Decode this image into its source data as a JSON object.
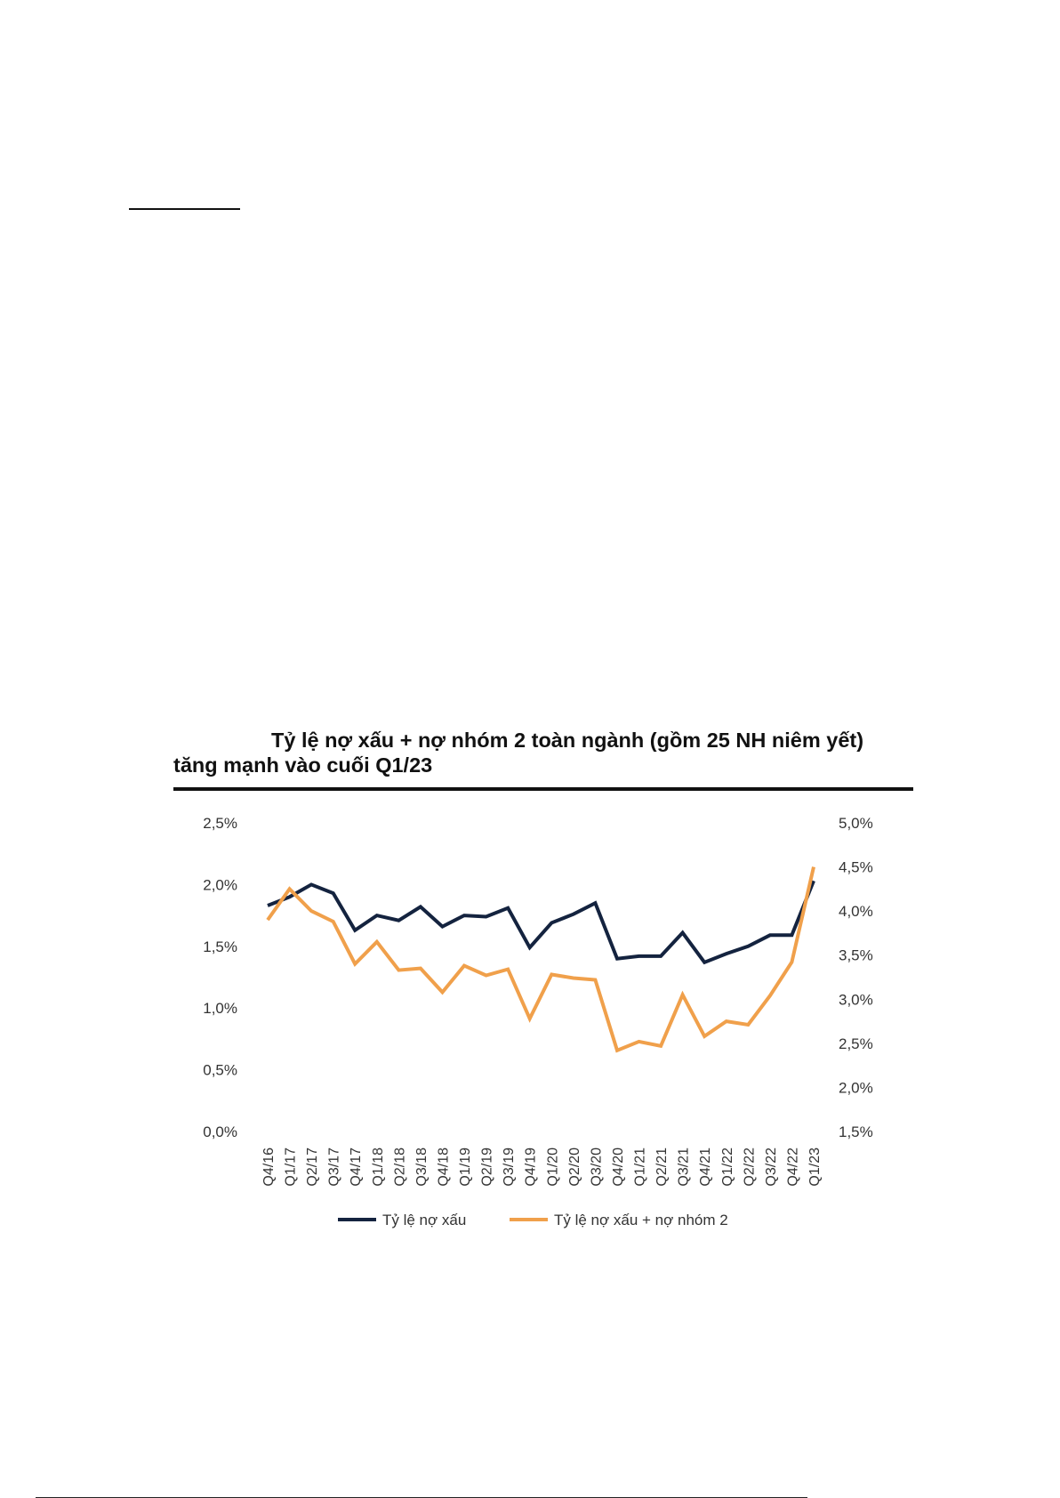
{
  "chart_data": {
    "type": "line",
    "title_line1": "Tỷ lệ nợ xấu + nợ nhóm 2 toàn ngành (gồm 25 NH niêm yết)",
    "title_line2": "tăng mạnh vào cuối Q1/23",
    "categories": [
      "Q4/16",
      "Q1/17",
      "Q2/17",
      "Q3/17",
      "Q4/17",
      "Q1/18",
      "Q2/18",
      "Q3/18",
      "Q4/18",
      "Q1/19",
      "Q2/19",
      "Q3/19",
      "Q4/19",
      "Q1/20",
      "Q2/20",
      "Q3/20",
      "Q4/20",
      "Q1/21",
      "Q2/21",
      "Q3/21",
      "Q4/21",
      "Q1/22",
      "Q2/22",
      "Q3/22",
      "Q4/22",
      "Q1/23"
    ],
    "left_axis": {
      "ticks": [
        "2,5%",
        "2,0%",
        "1,5%",
        "1,0%",
        "0,5%",
        "0,0%"
      ],
      "ylim": [
        0,
        2.5
      ]
    },
    "right_axis": {
      "ticks": [
        "5,0%",
        "4,5%",
        "4,0%",
        "3,5%",
        "3,0%",
        "2,5%",
        "2,0%",
        "1,5%"
      ],
      "ylim": [
        1.5,
        5.0
      ]
    },
    "series": [
      {
        "name": "Tỷ lệ nợ xấu",
        "axis": "left",
        "color": "#14233f",
        "values": [
          1.83,
          1.9,
          2.0,
          1.93,
          1.63,
          1.75,
          1.71,
          1.82,
          1.66,
          1.75,
          1.74,
          1.81,
          1.49,
          1.69,
          1.76,
          1.85,
          1.4,
          1.42,
          1.42,
          1.61,
          1.37,
          1.44,
          1.5,
          1.59,
          1.59,
          2.03
        ]
      },
      {
        "name": "Tỷ lệ nợ xấu + nợ nhóm 2",
        "axis": "right",
        "color": "#f0a04b",
        "values": [
          3.9,
          4.25,
          4.0,
          3.88,
          3.4,
          3.65,
          3.33,
          3.35,
          3.08,
          3.38,
          3.27,
          3.34,
          2.78,
          3.28,
          3.24,
          3.22,
          2.42,
          2.52,
          2.47,
          3.05,
          2.58,
          2.75,
          2.71,
          3.04,
          3.42,
          4.5
        ]
      }
    ],
    "legend_position": "bottom",
    "grid": false
  }
}
